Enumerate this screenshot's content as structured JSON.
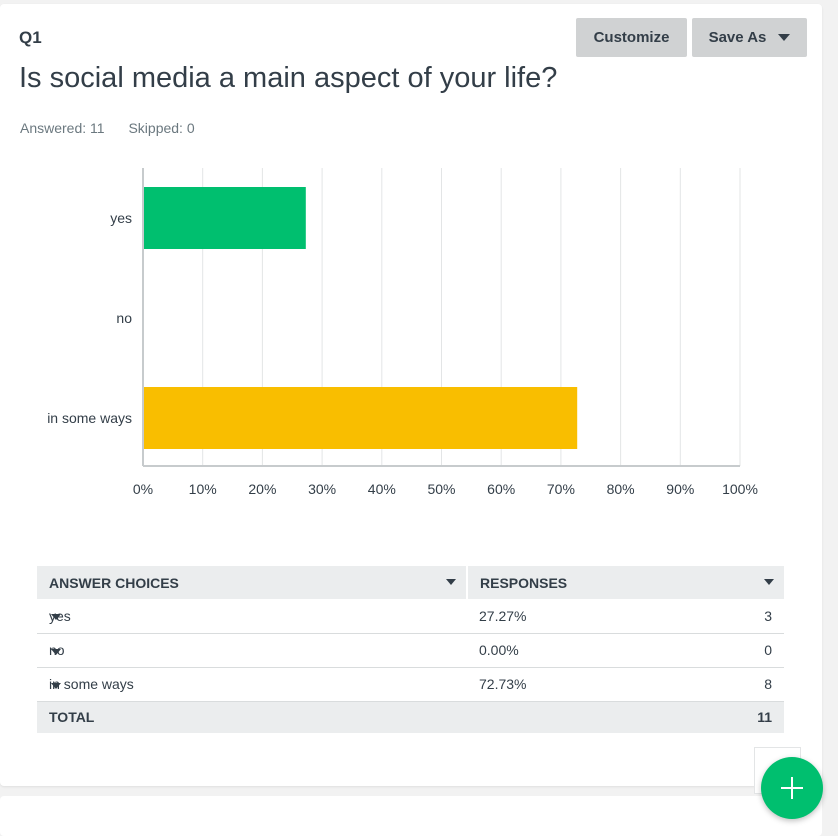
{
  "question": {
    "number": "Q1",
    "title": "Is social media a main aspect of your life?",
    "answered": "Answered: 11",
    "skipped": "Skipped: 0"
  },
  "toolbar": {
    "customize_label": "Customize",
    "save_as_label": "Save As"
  },
  "colors": {
    "yes": "#00bf6f",
    "no": "#6bc8cd",
    "in_some_ways": "#f9be00"
  },
  "chart_data": {
    "type": "bar",
    "orientation": "horizontal",
    "categories": [
      "yes",
      "no",
      "in some ways"
    ],
    "values": [
      27.27,
      0.0,
      72.73
    ],
    "unit": "%",
    "xlim": [
      0,
      100
    ],
    "xticks": [
      "0%",
      "10%",
      "20%",
      "30%",
      "40%",
      "50%",
      "60%",
      "70%",
      "80%",
      "90%",
      "100%"
    ],
    "grid": true
  },
  "table": {
    "headers": [
      "ANSWER CHOICES",
      "RESPONSES"
    ],
    "rows": [
      {
        "choice": "yes",
        "percent": "27.27%",
        "count": "3"
      },
      {
        "choice": "no",
        "percent": "0.00%",
        "count": "0"
      },
      {
        "choice": "in some ways",
        "percent": "72.73%",
        "count": "8"
      }
    ],
    "total_label": "TOTAL",
    "total_count": "11"
  },
  "fab": {
    "icon": "plus-icon"
  }
}
